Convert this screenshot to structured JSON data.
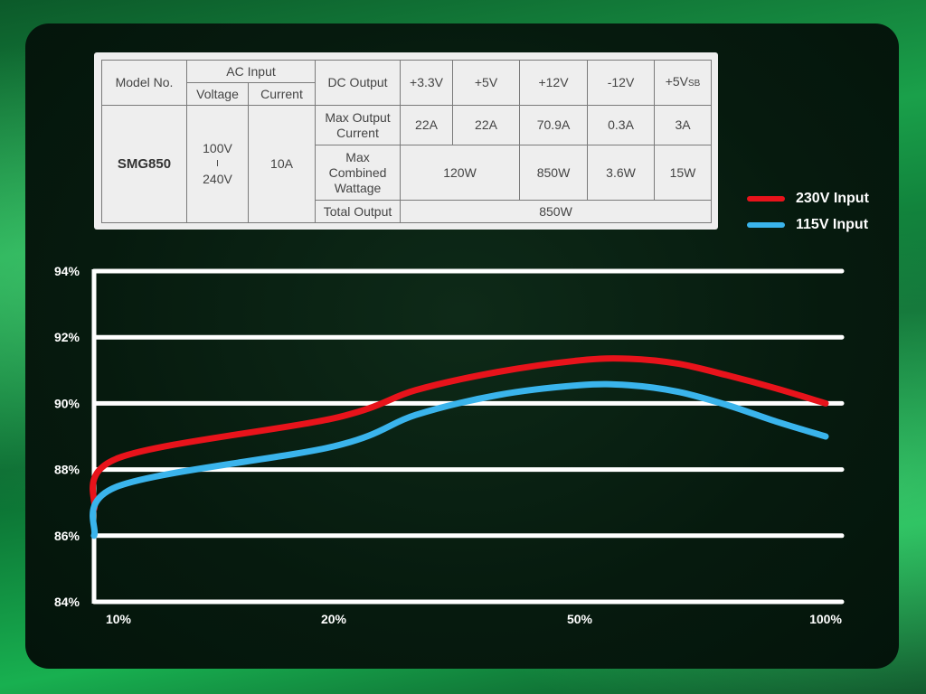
{
  "spec_table": {
    "header": {
      "model_no": "Model No.",
      "ac_input": "AC Input",
      "voltage": "Voltage",
      "current": "Current",
      "dc_output": "DC Output",
      "rails": [
        "+3.3V",
        "+5V",
        "+12V",
        "-12V",
        "+5V"
      ],
      "rail_sb_suffix": "SB"
    },
    "model": "SMG850",
    "voltage_min": "100V",
    "voltage_sep": "I",
    "voltage_max": "240V",
    "current_value": "10A",
    "max_output_current_label": "Max Output Current",
    "max_output_current": [
      "22A",
      "22A",
      "70.9A",
      "0.3A",
      "3A"
    ],
    "max_combined_wattage_label": "Max Combined Wattage",
    "combined_3v3_5v": "120W",
    "combined_12v": "850W",
    "combined_neg12v": "3.6W",
    "combined_5vsb": "15W",
    "total_output_label": "Total Output",
    "total_output": "850W"
  },
  "chart_data": {
    "type": "line",
    "categories": [
      "10%",
      "20%",
      "50%",
      "100%"
    ],
    "x_positions": [
      10,
      20,
      50,
      100
    ],
    "yticks": [
      "84%",
      "86%",
      "88%",
      "90%",
      "92%",
      "94%"
    ],
    "ylim": [
      84,
      94
    ],
    "series": [
      {
        "name": "230V Input",
        "color": "#e8131b",
        "x": [
          0,
          10,
          20,
          30,
          40,
          50,
          60,
          70,
          80,
          90,
          100
        ],
        "values": [
          86.8,
          88.35,
          89.55,
          90.4,
          90.95,
          91.3,
          91.35,
          91.2,
          90.85,
          90.45,
          90.0
        ]
      },
      {
        "name": "115V Input",
        "color": "#3ab4ec",
        "x": [
          0,
          10,
          20,
          30,
          40,
          50,
          60,
          70,
          80,
          90,
          100
        ],
        "values": [
          86.0,
          87.5,
          88.7,
          89.65,
          90.25,
          90.55,
          90.55,
          90.35,
          89.95,
          89.45,
          89.0
        ]
      }
    ],
    "grid": true,
    "legend_position": "top-right"
  }
}
